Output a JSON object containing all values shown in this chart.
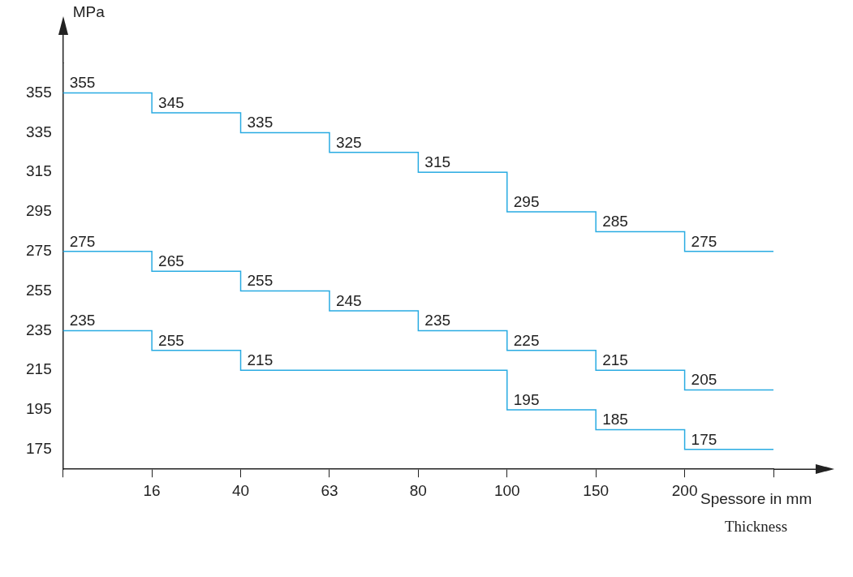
{
  "chart_data": {
    "type": "step",
    "xlabel": "Spessore in mm",
    "ylabel": "MPa",
    "annotations": [
      "Thickness",
      {
        "text": "255",
        "x": "16",
        "y": 225
      }
    ],
    "categories": [
      null,
      "16",
      "40",
      "63",
      "80",
      "100",
      "150",
      "200",
      null
    ],
    "ylim": [
      165,
      370
    ],
    "yticks": [
      175,
      195,
      215,
      235,
      255,
      275,
      295,
      315,
      335,
      355
    ],
    "grid": false,
    "legend": false,
    "series": [
      {
        "color": "#29abe2",
        "values": [
          355,
          345,
          335,
          325,
          315,
          295,
          285,
          275,
          275
        ],
        "value_labels": [
          "355",
          "345",
          "335",
          "325",
          "315",
          "295",
          "285",
          "275",
          null
        ]
      },
      {
        "color": "#29abe2",
        "values": [
          275,
          265,
          255,
          245,
          235,
          225,
          215,
          205,
          205
        ],
        "value_labels": [
          "275",
          "265",
          "255",
          "245",
          "235",
          "225",
          "215",
          "205",
          null
        ]
      },
      {
        "color": "#29abe2",
        "values": [
          235,
          225,
          215,
          215,
          215,
          195,
          185,
          175,
          175
        ],
        "value_labels": [
          "235",
          null,
          "215",
          null,
          null,
          "195",
          "185",
          "175",
          null
        ]
      }
    ]
  }
}
